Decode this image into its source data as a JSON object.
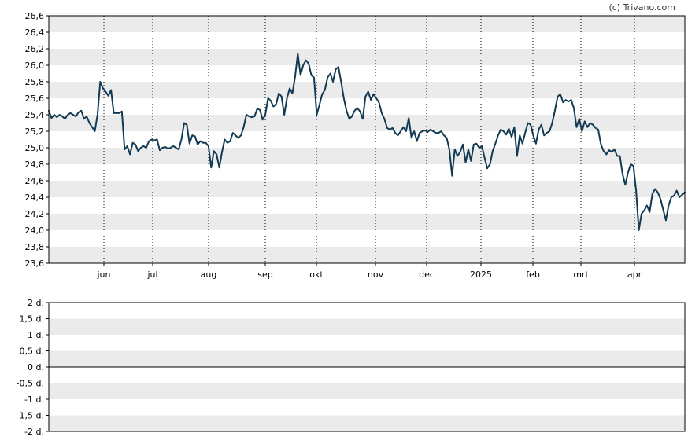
{
  "credit": "(c) Trivano.com",
  "chart_data": [
    {
      "type": "line",
      "ylim": [
        23.6,
        26.6
      ],
      "y_ticks": [
        "23,6",
        "23,8",
        "24,0",
        "24,2",
        "24,4",
        "24,6",
        "24,8",
        "25,0",
        "25,2",
        "25,4",
        "25,6",
        "25,8",
        "26,0",
        "26,2",
        "26,4",
        "26,6"
      ],
      "x_ticks": [
        "jun",
        "jul",
        "aug",
        "sep",
        "okt",
        "nov",
        "dec",
        "2025",
        "feb",
        "mrt",
        "apr"
      ],
      "grid": "banded horizontal, dotted vertical",
      "line_color": "#123a52",
      "series": [
        {
          "values": [
            25.45,
            25.36,
            25.4,
            25.37,
            25.4,
            25.38,
            25.35,
            25.4,
            25.42,
            25.4,
            25.38,
            25.43,
            25.45,
            25.35,
            25.38,
            25.3,
            25.25,
            25.2,
            25.4,
            25.8,
            25.72,
            25.68,
            25.63,
            25.7,
            25.42,
            25.42,
            25.42,
            25.44,
            24.98,
            25.02,
            24.92,
            25.06,
            25.04,
            24.96,
            25.0,
            25.02,
            25.0,
            25.08,
            25.1,
            25.09,
            25.1,
            24.97,
            25.0,
            25.01,
            24.99,
            25.0,
            25.02,
            25.0,
            24.98,
            25.1,
            25.3,
            25.28,
            25.05,
            25.15,
            25.14,
            25.04,
            25.08,
            25.06,
            25.06,
            25.02,
            24.76,
            24.96,
            24.92,
            24.76,
            24.95,
            25.1,
            25.06,
            25.08,
            25.18,
            25.15,
            25.12,
            25.15,
            25.25,
            25.4,
            25.38,
            25.37,
            25.38,
            25.47,
            25.46,
            25.34,
            25.4,
            25.6,
            25.57,
            25.5,
            25.53,
            25.66,
            25.62,
            25.4,
            25.6,
            25.72,
            25.66,
            25.86,
            26.14,
            25.88,
            26.0,
            26.06,
            26.02,
            25.88,
            25.85,
            25.4,
            25.52,
            25.65,
            25.7,
            25.85,
            25.9,
            25.8,
            25.95,
            25.98,
            25.8,
            25.6,
            25.45,
            25.35,
            25.38,
            25.45,
            25.48,
            25.44,
            25.35,
            25.62,
            25.68,
            25.58,
            25.65,
            25.6,
            25.55,
            25.42,
            25.35,
            25.24,
            25.22,
            25.24,
            25.18,
            25.15,
            25.2,
            25.25,
            25.2,
            25.36,
            25.12,
            25.2,
            25.08,
            25.18,
            25.2,
            25.21,
            25.19,
            25.22,
            25.2,
            25.18,
            25.18,
            25.2,
            25.15,
            25.12,
            24.98,
            24.66,
            24.98,
            24.9,
            24.95,
            25.04,
            24.82,
            24.98,
            24.84,
            25.04,
            25.05,
            25.0,
            25.02,
            24.88,
            24.75,
            24.8,
            24.96,
            25.05,
            25.15,
            25.22,
            25.2,
            25.16,
            25.23,
            25.13,
            25.25,
            24.9,
            25.15,
            25.05,
            25.18,
            25.3,
            25.28,
            25.15,
            25.05,
            25.22,
            25.28,
            25.15,
            25.18,
            25.2,
            25.3,
            25.45,
            25.62,
            25.65,
            25.55,
            25.58,
            25.56,
            25.58,
            25.48,
            25.25,
            25.35,
            25.2,
            25.32,
            25.25,
            25.3,
            25.28,
            25.24,
            25.22,
            25.04,
            24.96,
            24.92,
            24.97,
            24.95,
            24.98,
            24.9,
            24.9,
            24.68,
            24.55,
            24.7,
            24.8,
            24.78,
            24.48,
            24.0,
            24.2,
            24.24,
            24.3,
            24.22,
            24.44,
            24.5,
            24.46,
            24.38,
            24.25,
            24.12,
            24.3,
            24.4,
            24.42,
            24.48,
            24.4,
            24.43,
            24.46
          ]
        }
      ]
    },
    {
      "type": "line",
      "ylim": [
        -2,
        2
      ],
      "y_ticks": [
        "-2 d.",
        "-1,5 d.",
        "-1 d.",
        "-0,5 d.",
        "0 d.",
        "0,5 d.",
        "1 d.",
        "1,5 d.",
        "2 d."
      ],
      "baseline": 0,
      "series": []
    }
  ]
}
